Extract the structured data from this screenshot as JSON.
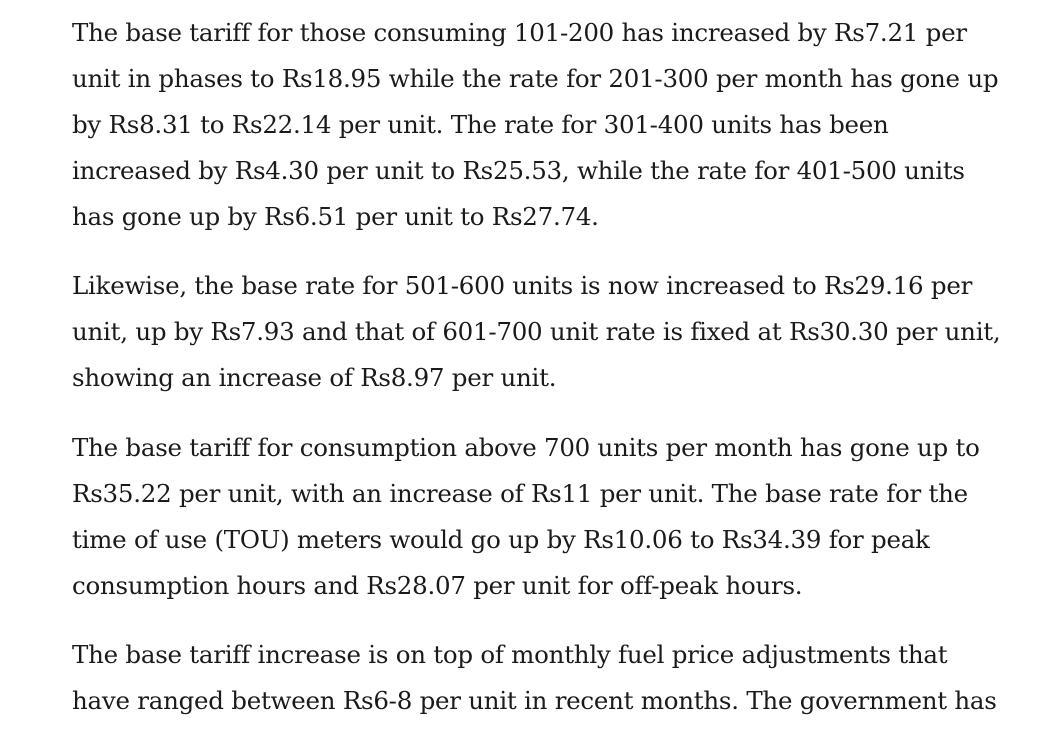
{
  "article": {
    "paragraphs": [
      "The base tariff for those consuming 101-200 has increased by Rs7.21 per unit in phases to Rs18.95 while the rate for 201-300 per month has gone up by Rs8.31 to Rs22.14 per unit. The rate for 301-400 units has been increased by Rs4.30 per unit to Rs25.53, while the rate for 401-500 units has gone up by Rs6.51 per unit to Rs27.74.",
      "Likewise, the base rate for 501-600 units is now increased to Rs29.16 per unit, up by Rs7.93 and that of 601-700 unit rate is fixed at Rs30.30 per unit, showing an increase of Rs8.97 per unit.",
      "The base tariff for consumption above 700 units per month has gone up to Rs35.22 per unit, with an increase of Rs11 per unit. The base rate for the time of use (TOU) meters would go up by Rs10.06 to Rs34.39 for peak consumption hours and Rs28.07 per unit for off-peak hours.",
      "The base tariff increase is on top of monthly fuel price adjustments that have ranged between Rs6-8 per unit in recent months. The government has"
    ]
  }
}
